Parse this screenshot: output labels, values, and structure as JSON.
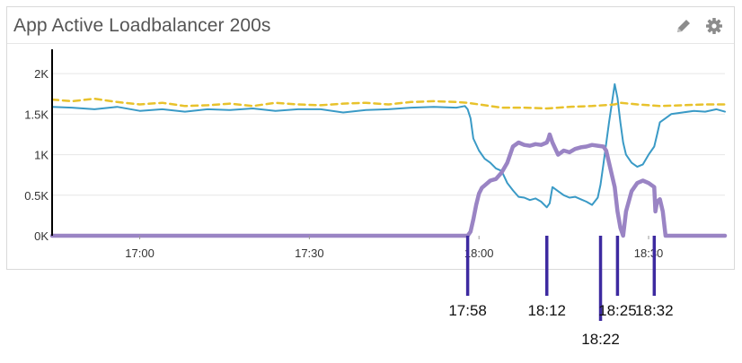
{
  "panel": {
    "title": "App Active Loadbalancer 200s",
    "edit_icon": "pencil-icon",
    "settings_icon": "gear-icon"
  },
  "colors": {
    "series_blue": "#3a9ac6",
    "series_yellow": "#e8c22c",
    "series_purple": "#9a84c4",
    "marker": "#3d2aa0",
    "axis": "#000000",
    "grid": "#e6e6e6"
  },
  "chart_data": {
    "type": "line",
    "title": "App Active Loadbalancer 200s",
    "xlabel": "",
    "ylabel": "",
    "x_range_minutes": [
      -75.5,
      43.5
    ],
    "ylim": [
      0,
      2300
    ],
    "y_ticks": [
      {
        "value": 0,
        "label": "0K"
      },
      {
        "value": 500,
        "label": "0.5K"
      },
      {
        "value": 1000,
        "label": "1K"
      },
      {
        "value": 1500,
        "label": "1.5K"
      },
      {
        "value": 2000,
        "label": "2K"
      }
    ],
    "x_ticks": [
      {
        "value": -60,
        "label": "17:00"
      },
      {
        "value": -30,
        "label": "17:30"
      },
      {
        "value": 0,
        "label": "18:00"
      },
      {
        "value": 30,
        "label": "18:30"
      }
    ],
    "grid": true,
    "series": [
      {
        "style": "solid",
        "color": "#3a9ac6",
        "x": [
          -75.5,
          -72,
          -68,
          -64,
          -60,
          -56,
          -52,
          -48,
          -44,
          -40,
          -36,
          -32,
          -28,
          -24,
          -20,
          -16,
          -12,
          -8,
          -4,
          -2.5,
          -2,
          -1.5,
          -1,
          0,
          1,
          2,
          3,
          4,
          5,
          6,
          7,
          8,
          9,
          10,
          11,
          12,
          12.5,
          13,
          14,
          15,
          16,
          17,
          18,
          19,
          20,
          21,
          21.5,
          22,
          23,
          24,
          24.5,
          25,
          25.5,
          26,
          27,
          28,
          29,
          30,
          31,
          31.5,
          32,
          33,
          34,
          36,
          38,
          40,
          42,
          43.5
        ],
        "y": [
          1590,
          1580,
          1560,
          1590,
          1540,
          1560,
          1530,
          1560,
          1550,
          1570,
          1540,
          1560,
          1560,
          1520,
          1550,
          1560,
          1580,
          1590,
          1580,
          1600,
          1560,
          1450,
          1200,
          1050,
          950,
          900,
          830,
          800,
          650,
          560,
          480,
          470,
          440,
          460,
          420,
          350,
          400,
          600,
          550,
          500,
          470,
          480,
          450,
          420,
          380,
          470,
          630,
          880,
          1400,
          1870,
          1700,
          1400,
          1150,
          1000,
          900,
          850,
          880,
          1000,
          1100,
          1250,
          1400,
          1450,
          1500,
          1520,
          1540,
          1530,
          1560,
          1530
        ]
      },
      {
        "style": "dashed",
        "color": "#e8c22c",
        "x": [
          -75.5,
          -72,
          -68,
          -64,
          -60,
          -56,
          -52,
          -48,
          -44,
          -40,
          -36,
          -32,
          -28,
          -24,
          -20,
          -16,
          -12,
          -8,
          -4,
          -2,
          0,
          4,
          8,
          12,
          16,
          20,
          24,
          25,
          28,
          32,
          36,
          40,
          43.5
        ],
        "y": [
          1680,
          1660,
          1690,
          1650,
          1620,
          1640,
          1600,
          1610,
          1630,
          1600,
          1640,
          1620,
          1610,
          1630,
          1640,
          1620,
          1650,
          1660,
          1650,
          1640,
          1620,
          1580,
          1580,
          1570,
          1590,
          1600,
          1620,
          1640,
          1620,
          1600,
          1610,
          1620,
          1620
        ]
      },
      {
        "style": "thick",
        "color": "#9a84c4",
        "x": [
          -75.5,
          -2,
          -1.5,
          -1,
          -0.5,
          0,
          0.5,
          1,
          2,
          3,
          4,
          5,
          6,
          7,
          8,
          9,
          10,
          11,
          12,
          12.3,
          12.5,
          13,
          14,
          15,
          16,
          17,
          18,
          19,
          20,
          21,
          22,
          22.5,
          23,
          24,
          24.5,
          25,
          25.5,
          26,
          27,
          28,
          29,
          30,
          31,
          31.2,
          31.5,
          32,
          32.5,
          33,
          43.5
        ],
        "y": [
          0,
          0,
          50,
          200,
          380,
          520,
          590,
          620,
          680,
          700,
          780,
          900,
          1100,
          1150,
          1120,
          1110,
          1130,
          1120,
          1150,
          1200,
          1250,
          1150,
          1000,
          1050,
          1030,
          1070,
          1090,
          1100,
          1120,
          1110,
          1100,
          1050,
          900,
          600,
          300,
          100,
          0,
          300,
          550,
          650,
          680,
          650,
          600,
          300,
          420,
          450,
          300,
          0,
          0
        ]
      }
    ],
    "markers": [
      {
        "x": -2,
        "label": "17:58"
      },
      {
        "x": 12,
        "label": "18:12"
      },
      {
        "x": 21.5,
        "label": "18:22"
      },
      {
        "x": 24.5,
        "label": "18:25"
      },
      {
        "x": 31,
        "label": "18:32"
      }
    ]
  }
}
